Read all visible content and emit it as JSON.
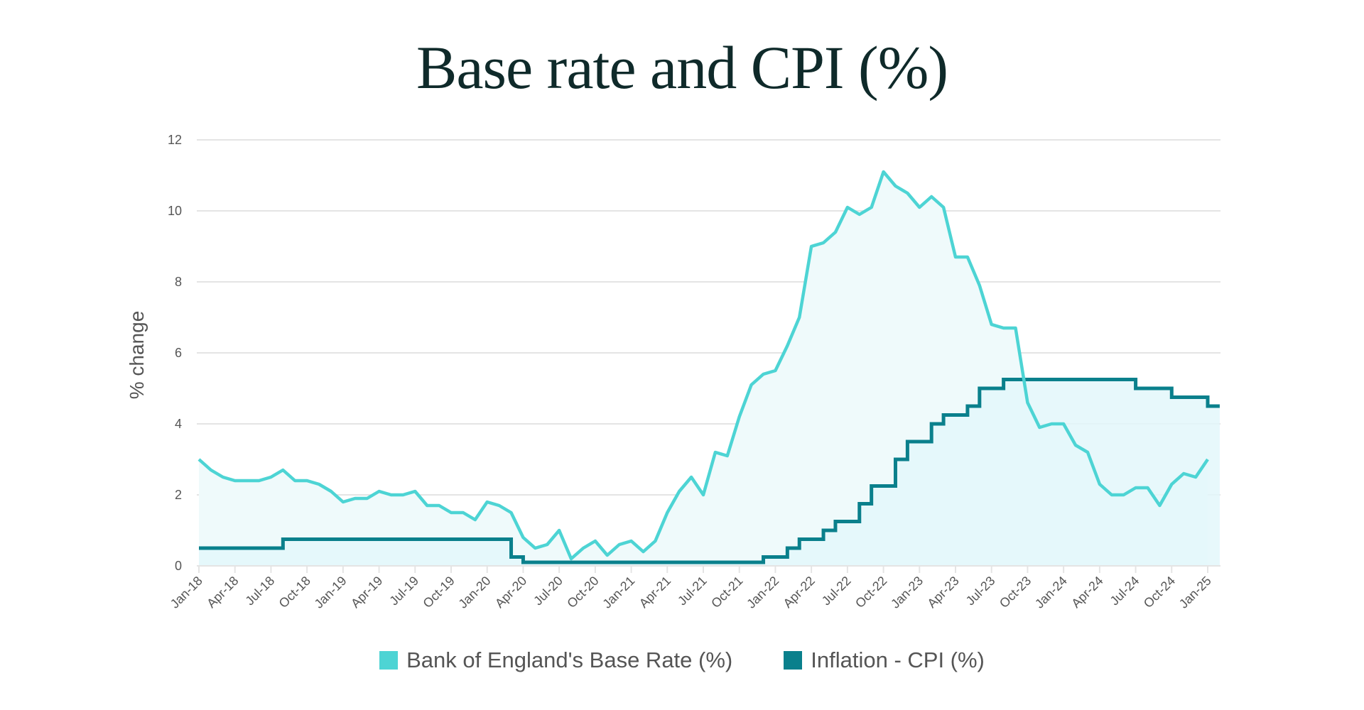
{
  "title": "Base rate and CPI (%)",
  "colors": {
    "light_line": "#4DD4D4",
    "light_fill": "#EFFAFB",
    "dark_line": "#0A808C",
    "dark_fill": "#E3F7FA",
    "grid": "#E4E4E4",
    "text": "#555555"
  },
  "legend": [
    {
      "label": "Bank of England's Base Rate (%)",
      "series": "light"
    },
    {
      "label": "Inflation - CPI (%)",
      "series": "dark"
    }
  ],
  "chart_data": {
    "type": "line",
    "title": "Base rate and CPI (%)",
    "xlabel": "",
    "ylabel": "% change",
    "ylim": [
      0,
      12
    ],
    "yticks": [
      0,
      2,
      4,
      6,
      8,
      10,
      12
    ],
    "grid": true,
    "legend_position": "bottom",
    "x_tick_labels": [
      "Jan-18",
      "Apr-18",
      "Jul-18",
      "Oct-18",
      "Jan-19",
      "Apr-19",
      "Jul-19",
      "Oct-19",
      "Jan-20",
      "Apr-20",
      "Jul-20",
      "Oct-20",
      "Jan-21",
      "Apr-21",
      "Jul-21",
      "Oct-21",
      "Jan-22",
      "Apr-22",
      "Jul-22",
      "Oct-22",
      "Jan-23",
      "Apr-23",
      "Jul-23",
      "Oct-23",
      "Jan-24",
      "Apr-24",
      "Jul-24",
      "Oct-24",
      "Jan-25"
    ],
    "x_start": "Jan-18",
    "x_frequency": "monthly",
    "series": [
      {
        "name": "Bank of England's Base Rate (%)",
        "key": "light",
        "style": "line-area",
        "values": [
          3.0,
          2.7,
          2.5,
          2.4,
          2.4,
          2.4,
          2.5,
          2.7,
          2.4,
          2.4,
          2.3,
          2.1,
          1.8,
          1.9,
          1.9,
          2.1,
          2.0,
          2.0,
          2.1,
          1.7,
          1.7,
          1.5,
          1.5,
          1.3,
          1.8,
          1.7,
          1.5,
          0.8,
          0.5,
          0.6,
          1.0,
          0.2,
          0.5,
          0.7,
          0.3,
          0.6,
          0.7,
          0.4,
          0.7,
          1.5,
          2.1,
          2.5,
          2.0,
          3.2,
          3.1,
          4.2,
          5.1,
          5.4,
          5.5,
          6.2,
          7.0,
          9.0,
          9.1,
          9.4,
          10.1,
          9.9,
          10.1,
          11.1,
          10.7,
          10.5,
          10.1,
          10.4,
          10.1,
          8.7,
          8.7,
          7.9,
          6.8,
          6.7,
          6.7,
          4.6,
          3.9,
          4.0,
          4.0,
          3.4,
          3.2,
          2.3,
          2.0,
          2.0,
          2.2,
          2.2,
          1.7,
          2.3,
          2.6,
          2.5,
          3.0
        ]
      },
      {
        "name": "Inflation - CPI (%)",
        "key": "dark",
        "style": "step-area",
        "values": [
          0.5,
          0.5,
          0.5,
          0.5,
          0.5,
          0.5,
          0.5,
          0.75,
          0.75,
          0.75,
          0.75,
          0.75,
          0.75,
          0.75,
          0.75,
          0.75,
          0.75,
          0.75,
          0.75,
          0.75,
          0.75,
          0.75,
          0.75,
          0.75,
          0.75,
          0.75,
          0.25,
          0.1,
          0.1,
          0.1,
          0.1,
          0.1,
          0.1,
          0.1,
          0.1,
          0.1,
          0.1,
          0.1,
          0.1,
          0.1,
          0.1,
          0.1,
          0.1,
          0.1,
          0.1,
          0.1,
          0.1,
          0.25,
          0.25,
          0.5,
          0.75,
          0.75,
          1.0,
          1.25,
          1.25,
          1.75,
          2.25,
          2.25,
          3.0,
          3.5,
          3.5,
          4.0,
          4.25,
          4.25,
          4.5,
          5.0,
          5.0,
          5.25,
          5.25,
          5.25,
          5.25,
          5.25,
          5.25,
          5.25,
          5.25,
          5.25,
          5.25,
          5.25,
          5.0,
          5.0,
          5.0,
          4.75,
          4.75,
          4.75,
          4.5
        ]
      }
    ]
  }
}
